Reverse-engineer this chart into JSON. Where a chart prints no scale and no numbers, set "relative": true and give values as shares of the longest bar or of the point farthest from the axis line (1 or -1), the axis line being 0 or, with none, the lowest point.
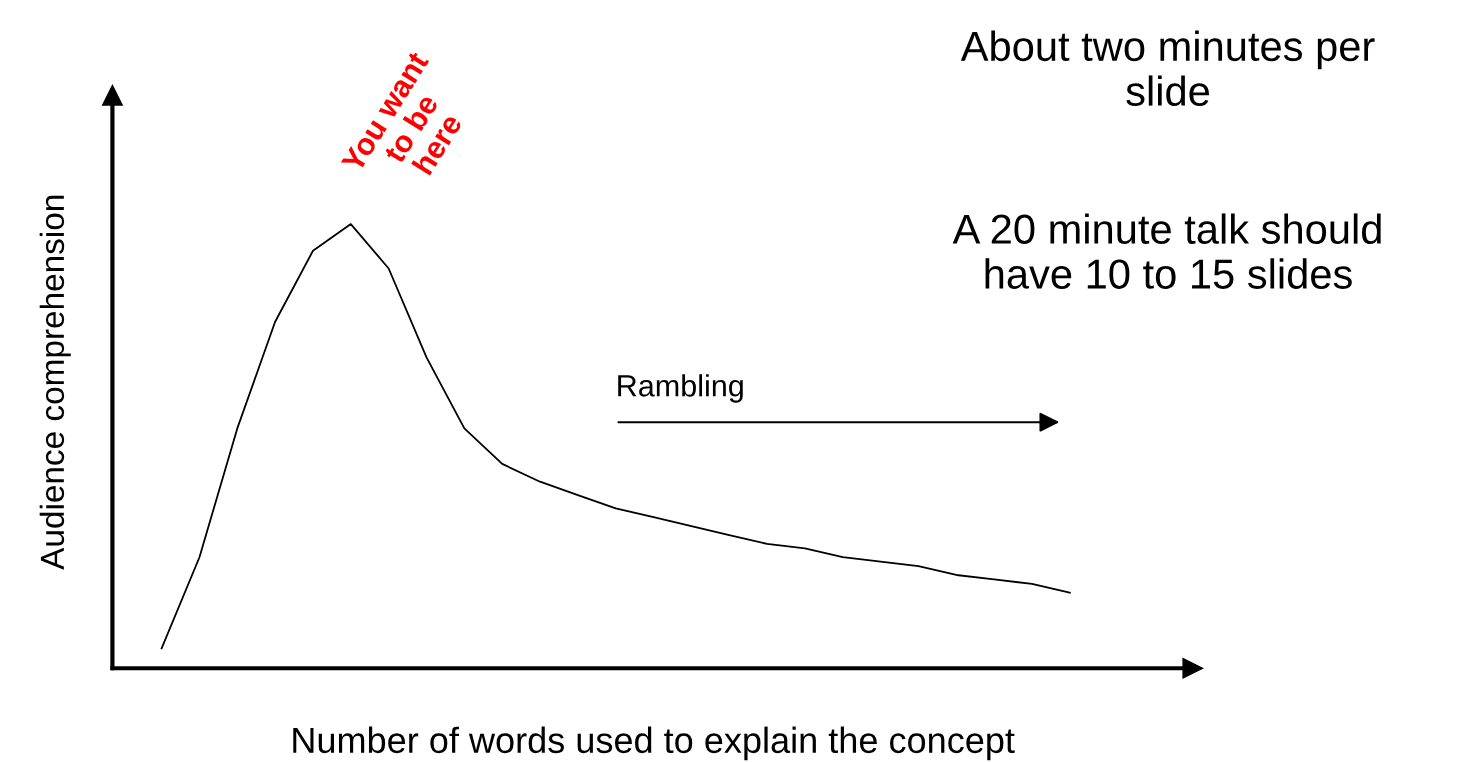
{
  "chart_data": {
    "type": "line",
    "relative": true,
    "xlabel": "Number of words used to explain the concept",
    "ylabel": "Audience comprehension",
    "categories": [
      null,
      null,
      null,
      null,
      null,
      null,
      null,
      null,
      null,
      null,
      null,
      null,
      null,
      null,
      null,
      null,
      null,
      null,
      null,
      null,
      null,
      null,
      null,
      null,
      null
    ],
    "series": [
      {
        "color": "#000000",
        "values": [
          0.045,
          0.25,
          0.54,
          0.78,
          0.94,
          1.0,
          0.9,
          0.7,
          0.54,
          0.46,
          0.42,
          0.39,
          0.36,
          0.34,
          0.32,
          0.3,
          0.28,
          0.27,
          0.25,
          0.24,
          0.23,
          0.21,
          0.2,
          0.19,
          0.17
        ]
      }
    ],
    "annotations": [
      "You want to be here",
      "Rambling",
      "About two minutes per slide",
      "A 20 minute talk should have 10 to 15 slides"
    ],
    "grid": false,
    "legend": false,
    "marker": "none",
    "line_style": "solid",
    "tick_labels": false
  }
}
